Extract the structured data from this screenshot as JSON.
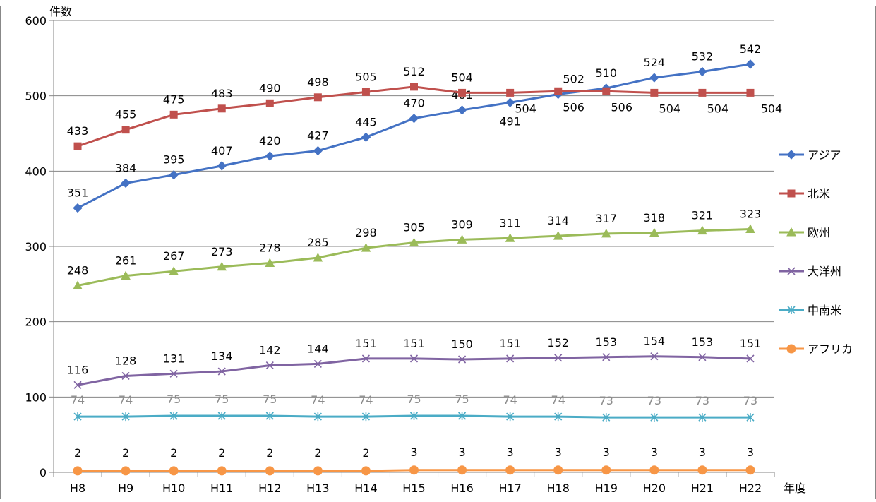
{
  "chart_data": {
    "type": "line",
    "title": "",
    "ylabel": "件数",
    "xlabel": "年度",
    "ylim": [
      0,
      600
    ],
    "yticks": [
      0,
      100,
      200,
      300,
      400,
      500,
      600
    ],
    "grid": true,
    "legend_position": "right",
    "categories": [
      "H8",
      "H9",
      "H10",
      "H11",
      "H12",
      "H13",
      "H14",
      "H15",
      "H16",
      "H17",
      "H18",
      "H19",
      "H20",
      "H21",
      "H22"
    ],
    "series": [
      {
        "name": "アジア",
        "color": "#4472C4",
        "marker": "diamond",
        "label_color": "#000000",
        "values": [
          351,
          384,
          395,
          407,
          420,
          427,
          445,
          470,
          481,
          491,
          502,
          510,
          524,
          532,
          542
        ]
      },
      {
        "name": "北米",
        "color": "#C0504D",
        "marker": "square",
        "label_color": "#000000",
        "values": [
          433,
          455,
          475,
          483,
          490,
          498,
          505,
          512,
          504,
          504,
          506,
          506,
          504,
          504,
          504
        ]
      },
      {
        "name": "欧州",
        "color": "#9BBB59",
        "marker": "triangle",
        "label_color": "#000000",
        "values": [
          248,
          261,
          267,
          273,
          278,
          285,
          298,
          305,
          309,
          311,
          314,
          317,
          318,
          321,
          323
        ]
      },
      {
        "name": "大洋州",
        "color": "#8064A2",
        "marker": "x",
        "label_color": "#000000",
        "values": [
          116,
          128,
          131,
          134,
          142,
          144,
          151,
          151,
          150,
          151,
          152,
          153,
          154,
          153,
          151
        ]
      },
      {
        "name": "中南米",
        "color": "#4BACC6",
        "marker": "star",
        "label_color": "#8c8c8c",
        "values": [
          74,
          74,
          75,
          75,
          75,
          74,
          74,
          75,
          75,
          74,
          74,
          73,
          73,
          73,
          73
        ]
      },
      {
        "name": "アフリカ",
        "color": "#F79646",
        "marker": "circle",
        "label_color": "#000000",
        "values": [
          2,
          2,
          2,
          2,
          2,
          2,
          2,
          3,
          3,
          3,
          3,
          3,
          3,
          3,
          3
        ]
      }
    ]
  }
}
